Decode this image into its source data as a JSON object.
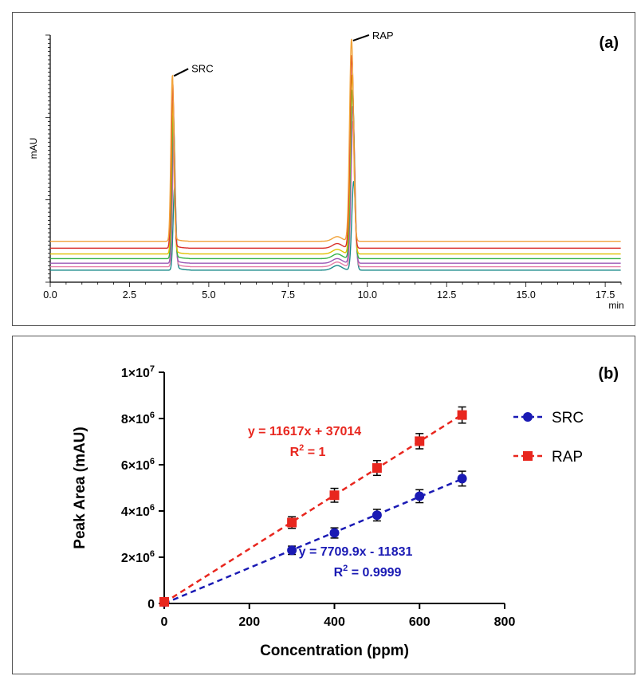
{
  "chart_data": [
    {
      "type": "line",
      "panel_label": "(a)",
      "ylabel": "mAU",
      "xlabel": "min",
      "xlim": [
        0,
        18
      ],
      "x_ticks": [
        "0.0",
        "2.5",
        "5.0",
        "7.5",
        "10.0",
        "12.5",
        "15.0",
        "17.5"
      ],
      "x_tick_values": [
        0,
        2.5,
        5,
        7.5,
        10,
        12.5,
        15,
        17.5
      ],
      "peaks": [
        {
          "label": "SRC",
          "retention_time": 3.85
        },
        {
          "label": "RAP",
          "retention_time": 9.5
        }
      ],
      "series": [
        {
          "color": "#f2a33a",
          "baseline": 0.115,
          "src_height": 0.715,
          "rap_height": 0.875,
          "shift": 0.0
        },
        {
          "color": "#d9302c",
          "baseline": 0.085,
          "src_height": 0.7,
          "rap_height": 0.835,
          "shift": 0.01
        },
        {
          "color": "#e0c000",
          "baseline": 0.06,
          "src_height": 0.655,
          "rap_height": 0.775,
          "shift": 0.02
        },
        {
          "color": "#37b34a",
          "baseline": 0.04,
          "src_height": 0.62,
          "rap_height": 0.73,
          "shift": 0.03
        },
        {
          "color": "#9b59b6",
          "baseline": 0.02,
          "src_height": 0.58,
          "rap_height": 0.68,
          "shift": 0.04
        },
        {
          "color": "#e67fa8",
          "baseline": 0.005,
          "src_height": 0.52,
          "rap_height": 0.63,
          "shift": 0.05
        },
        {
          "color": "#1b8a8a",
          "baseline": -0.01,
          "src_height": 0.355,
          "rap_height": 0.385,
          "shift": 0.07
        }
      ]
    },
    {
      "type": "scatter",
      "panel_label": "(b)",
      "xlabel": "Concentration (ppm)",
      "ylabel": "Peak Area (mAU)",
      "xlim": [
        0,
        800
      ],
      "ylim": [
        0,
        10000000
      ],
      "x_ticks": [
        "0",
        "200",
        "400",
        "600",
        "800"
      ],
      "x_tick_values": [
        0,
        200,
        400,
        600,
        800
      ],
      "y_ticks": [
        {
          "value": 0,
          "base": "0",
          "exp": ""
        },
        {
          "value": 2000000,
          "base": "2×10",
          "exp": "6"
        },
        {
          "value": 4000000,
          "base": "4×10",
          "exp": "6"
        },
        {
          "value": 6000000,
          "base": "6×10",
          "exp": "6"
        },
        {
          "value": 8000000,
          "base": "8×10",
          "exp": "6"
        },
        {
          "value": 10000000,
          "base": "1×10",
          "exp": "7"
        }
      ],
      "series": [
        {
          "name": "SRC",
          "color": "#1a1ab4",
          "marker": "circle",
          "x": [
            0,
            300,
            400,
            500,
            600,
            700
          ],
          "y": [
            50000,
            2300000,
            3050000,
            3820000,
            4640000,
            5400000
          ],
          "error": [
            0,
            180000,
            220000,
            250000,
            280000,
            320000
          ],
          "fit": {
            "slope": 7709.9,
            "intercept": -11831
          },
          "equation": "y = 7709.9x - 11831",
          "r2_prefix": "R",
          "r2_sup": "2",
          "r2_value": " = 0.9999"
        },
        {
          "name": "RAP",
          "color": "#e8261e",
          "marker": "square",
          "x": [
            0,
            300,
            400,
            500,
            600,
            700
          ],
          "y": [
            70000,
            3500000,
            4680000,
            5860000,
            7020000,
            8150000
          ],
          "error": [
            0,
            250000,
            300000,
            320000,
            330000,
            350000
          ],
          "fit": {
            "slope": 11617,
            "intercept": 37014
          },
          "equation": "y = 11617x + 37014",
          "r2_prefix": "R",
          "r2_sup": "2",
          "r2_value": " = 1"
        }
      ],
      "legend_position": "top-right"
    }
  ]
}
